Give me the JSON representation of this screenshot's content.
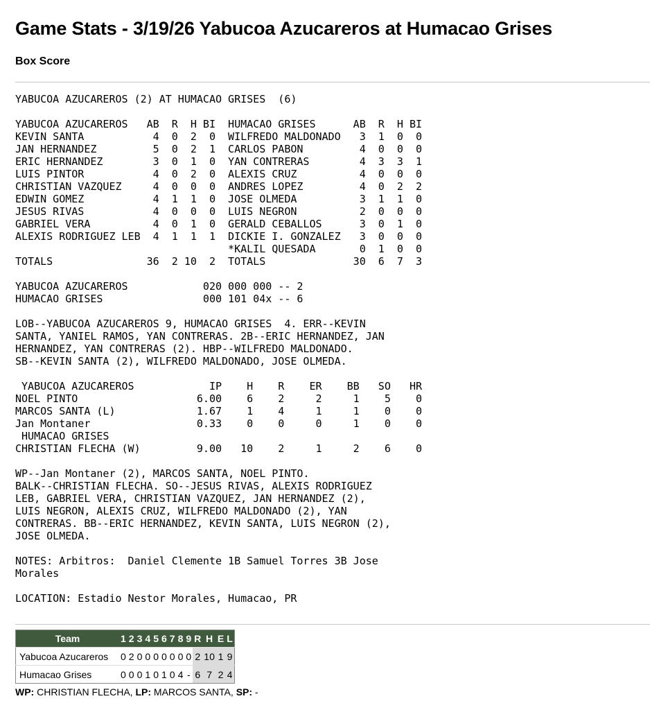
{
  "page_title": "Game Stats - 3/19/26 Yabucoa Azucareros at Humacao Grises",
  "section_title": "Box Score",
  "box_header": "YABUCOA AZUCAREROS (2) AT HUMACAO GRISES  (6)",
  "batting": {
    "columns": [
      "AB",
      "R",
      "H",
      "BI"
    ],
    "away": {
      "team": "YABUCOA AZUCAREROS",
      "players": [
        [
          "KEVIN SANTA",
          4,
          0,
          2,
          0
        ],
        [
          "JAN HERNANDEZ",
          5,
          0,
          2,
          1
        ],
        [
          "ERIC HERNANDEZ",
          3,
          0,
          1,
          0
        ],
        [
          "LUIS PINTOR",
          4,
          0,
          2,
          0
        ],
        [
          "CHRISTIAN VAZQUEZ",
          4,
          0,
          0,
          0
        ],
        [
          "EDWIN GOMEZ",
          4,
          1,
          1,
          0
        ],
        [
          "JESUS RIVAS",
          4,
          0,
          0,
          0
        ],
        [
          "GABRIEL VERA",
          4,
          0,
          1,
          0
        ],
        [
          "ALEXIS RODRIGUEZ LEB",
          4,
          1,
          1,
          1
        ]
      ],
      "totals": [
        "TOTALS",
        36,
        2,
        10,
        2
      ]
    },
    "home": {
      "team": "HUMACAO GRISES",
      "players": [
        [
          "WILFREDO MALDONADO",
          3,
          1,
          0,
          0
        ],
        [
          "CARLOS PABON",
          4,
          0,
          0,
          0
        ],
        [
          "YAN CONTRERAS",
          4,
          3,
          3,
          1
        ],
        [
          "ALEXIS CRUZ",
          4,
          0,
          0,
          0
        ],
        [
          "ANDRES LOPEZ",
          4,
          0,
          2,
          2
        ],
        [
          "JOSE OLMEDA",
          3,
          1,
          1,
          0
        ],
        [
          "LUIS NEGRON",
          2,
          0,
          0,
          0
        ],
        [
          "GERALD CEBALLOS",
          3,
          0,
          1,
          0
        ],
        [
          "DICKIE I. GONZALEZ",
          3,
          0,
          0,
          0
        ],
        [
          "*KALIL QUESADA",
          0,
          1,
          0,
          0
        ]
      ],
      "totals": [
        "TOTALS",
        30,
        6,
        7,
        3
      ]
    }
  },
  "line_score_text": [
    [
      "YABUCOA AZUCAREROS",
      "020 000 000 -- 2"
    ],
    [
      "HUMACAO GRISES",
      "000 101 04x -- 6"
    ]
  ],
  "game_notes_1": "LOB--YABUCOA AZUCAREROS 9, HUMACAO GRISES  4. ERR--KEVIN\nSANTA, YANIEL RAMOS, YAN CONTRERAS. 2B--ERIC HERNANDEZ, JAN\nHERNANDEZ, YAN CONTRERAS (2). HBP--WILFREDO MALDONADO.\nSB--KEVIN SANTA (2), WILFREDO MALDONADO, JOSE OLMEDA.",
  "pitching": {
    "columns": [
      "IP",
      "H",
      "R",
      "ER",
      "BB",
      "SO",
      "HR"
    ],
    "teams": [
      {
        "team": "YABUCOA AZUCAREROS",
        "pitchers": [
          [
            "NOEL PINTO",
            "6.00",
            6,
            2,
            2,
            1,
            5,
            0
          ],
          [
            "MARCOS SANTA (L)",
            "1.67",
            1,
            4,
            1,
            1,
            0,
            0
          ],
          [
            "Jan Montaner",
            "0.33",
            0,
            0,
            0,
            1,
            0,
            0
          ]
        ]
      },
      {
        "team": "HUMACAO GRISES",
        "pitchers": [
          [
            "CHRISTIAN FLECHA (W)",
            "9.00",
            10,
            2,
            1,
            2,
            6,
            0
          ]
        ]
      }
    ]
  },
  "game_notes_2": "WP--Jan Montaner (2), MARCOS SANTA, NOEL PINTO.\nBALK--CHRISTIAN FLECHA. SO--JESUS RIVAS, ALEXIS RODRIGUEZ\nLEB, GABRIEL VERA, CHRISTIAN VAZQUEZ, JAN HERNANDEZ (2),\nLUIS NEGRON, ALEXIS CRUZ, WILFREDO MALDONADO (2), YAN\nCONTRERAS. BB--ERIC HERNANDEZ, KEVIN SANTA, LUIS NEGRON (2),\nJOSE OLMEDA.",
  "umpires_note": "NOTES: Arbitros:  Daniel Clemente 1B Samuel Torres 3B Jose\nMorales",
  "location_note": "LOCATION: Estadio Nestor Morales, Humacao, PR",
  "linescore_table": {
    "header": [
      "Team",
      "1",
      "2",
      "3",
      "4",
      "5",
      "6",
      "7",
      "8",
      "9",
      "R",
      "H",
      "E",
      "L"
    ],
    "rows": [
      [
        "Yabucoa Azucareros",
        "0",
        "2",
        "0",
        "0",
        "0",
        "0",
        "0",
        "0",
        "0",
        "2",
        "10",
        "1",
        "9"
      ],
      [
        "Humacao Grises",
        "0",
        "0",
        "0",
        "1",
        "0",
        "1",
        "0",
        "4",
        "-",
        "6",
        "7",
        "2",
        "4"
      ]
    ],
    "header_color": "#3f5a3c",
    "totals_bg": "#dcdcdc"
  },
  "decisions": {
    "wp_label": "WP:",
    "wp": " CHRISTIAN FLECHA, ",
    "lp_label": "LP:",
    "lp": " MARCOS SANTA, ",
    "sp_label": "SP:",
    "sp": " -"
  }
}
